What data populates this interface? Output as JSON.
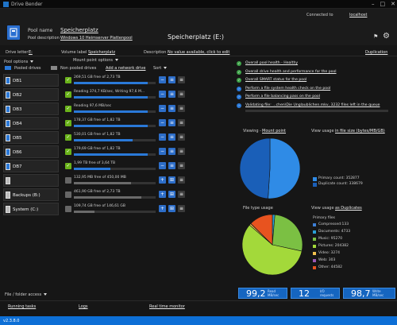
{
  "window": {
    "title": "Drive Bender"
  },
  "header": {
    "connected_label": "Connected to",
    "connected_host": "localhost",
    "pool_name_label": "Pool name",
    "pool_name": "Speicherplatz",
    "pool_desc_label": "Pool description",
    "pool_desc": "Windows 10 Heimserver Plattenpool",
    "pool_title": "Speicherplatz (E:)",
    "drive_letter_label": "Drive letter",
    "drive_letter": "E:",
    "volume_label_label": "Volume label",
    "volume_label": "Speicherplatz",
    "description_label": "Description",
    "description_value": "No value available, click to edit",
    "duplication": "Duplication"
  },
  "toolbar": {
    "pool_options": "Pool options",
    "mount_options": "Mount point options",
    "pooled_drives": "Pooled drives",
    "non_pooled_drives": "Non pooled drives",
    "add_network_drive": "Add a network drive",
    "sort": "Sort"
  },
  "drives": [
    {
      "name": "DB1",
      "info": "269,51 GB free of 2,73 TB",
      "fill": 0.9,
      "pooled": true
    },
    {
      "name": "DB2",
      "info": "Reading 374,7 KB/sec, Writing 97,6 M...",
      "fill": 0.9,
      "pooled": true
    },
    {
      "name": "DB3",
      "info": "Reading 97,6 MB/sec",
      "fill": 0.9,
      "pooled": true
    },
    {
      "name": "DB4",
      "info": "178,37 GB free of 1,82 TB",
      "fill": 0.9,
      "pooled": true
    },
    {
      "name": "DB5",
      "info": "530,01 GB free of 1,82 TB",
      "fill": 0.72,
      "pooled": true
    },
    {
      "name": "DB6",
      "info": "179,69 GB free of 1,82 TB",
      "fill": 0.9,
      "pooled": true
    },
    {
      "name": "DB7",
      "info": "1,99 TB free of 3,64 TB",
      "fill": 0.45,
      "pooled": true
    },
    {
      "name": "",
      "info": "132,95 MB free of 450,00 MB",
      "fill": 0.7,
      "pooled": false
    },
    {
      "name": "Backups (B:)",
      "info": "461,90 GB free of 2,73 TB",
      "fill": 0.83,
      "pooled": false
    },
    {
      "name": "System (C:)",
      "info": "109,74 GB free of 146,61 GB",
      "fill": 0.25,
      "pooled": false
    }
  ],
  "health": {
    "items": [
      {
        "text": "Overall pool health - Healthy",
        "kind": "ok"
      },
      {
        "text": "Overall drive health and performance for the pool",
        "kind": "ok"
      },
      {
        "text": "Overall SMART status for the pool",
        "kind": "ok"
      },
      {
        "text": "Perform a file system health check on the pool",
        "kind": "action"
      },
      {
        "text": "Perform a file balancing pass on the pool",
        "kind": "action"
      },
      {
        "text": "Validating file: ...chen\\Die Unglaublichen.mkv, 3232 files left in the queue",
        "kind": "action"
      }
    ]
  },
  "viewing": {
    "label": "Viewing -",
    "link": "Mount point",
    "view_usage_label": "View usage",
    "view_usage_link": "in file size (bytes/MB/GB)",
    "primary_label": "Primary count: 352877",
    "duplicate_label": "Duplicate count: 338679",
    "chart_data": {
      "type": "pie",
      "categories": [
        "Primary count",
        "Duplicate count"
      ],
      "values": [
        352877,
        338679
      ],
      "colors": [
        "#2f8be6",
        "#1a5fb8"
      ]
    }
  },
  "filetype": {
    "label": "File type usage",
    "view_usage_label": "View usage",
    "view_usage_link": "as Duplicates",
    "legend_title": "Primary files",
    "chart_data": {
      "type": "pie",
      "categories": [
        "Compressed",
        "Documents",
        "Music",
        "Pictures",
        "Video",
        "Web",
        "Other"
      ],
      "values": [
        133,
        4733,
        95270,
        204382,
        3274,
        303,
        44582
      ],
      "colors": [
        "#3d7fd6",
        "#2a9fd6",
        "#7bc043",
        "#a3d93a",
        "#f2c14e",
        "#9b59b6",
        "#e8531f"
      ],
      "legend": [
        "Compressed:133",
        "Documents: 4733",
        "Music: 95270",
        "Pictures: 204382",
        "Video: 3274",
        "Web: 303",
        "Other: 44582"
      ]
    }
  },
  "stats": [
    {
      "value": "99,2",
      "unit": "Read\nMB/sec"
    },
    {
      "value": "12",
      "unit": "I/O\nrequests"
    },
    {
      "value": "98,7",
      "unit": "Write\nMB/sec"
    }
  ],
  "footer": {
    "file_access": "File / folder access",
    "running_tasks": "Running tasks",
    "logs": "Logs",
    "realtime": "Real time monitor",
    "version": "v2.3.8.0"
  }
}
